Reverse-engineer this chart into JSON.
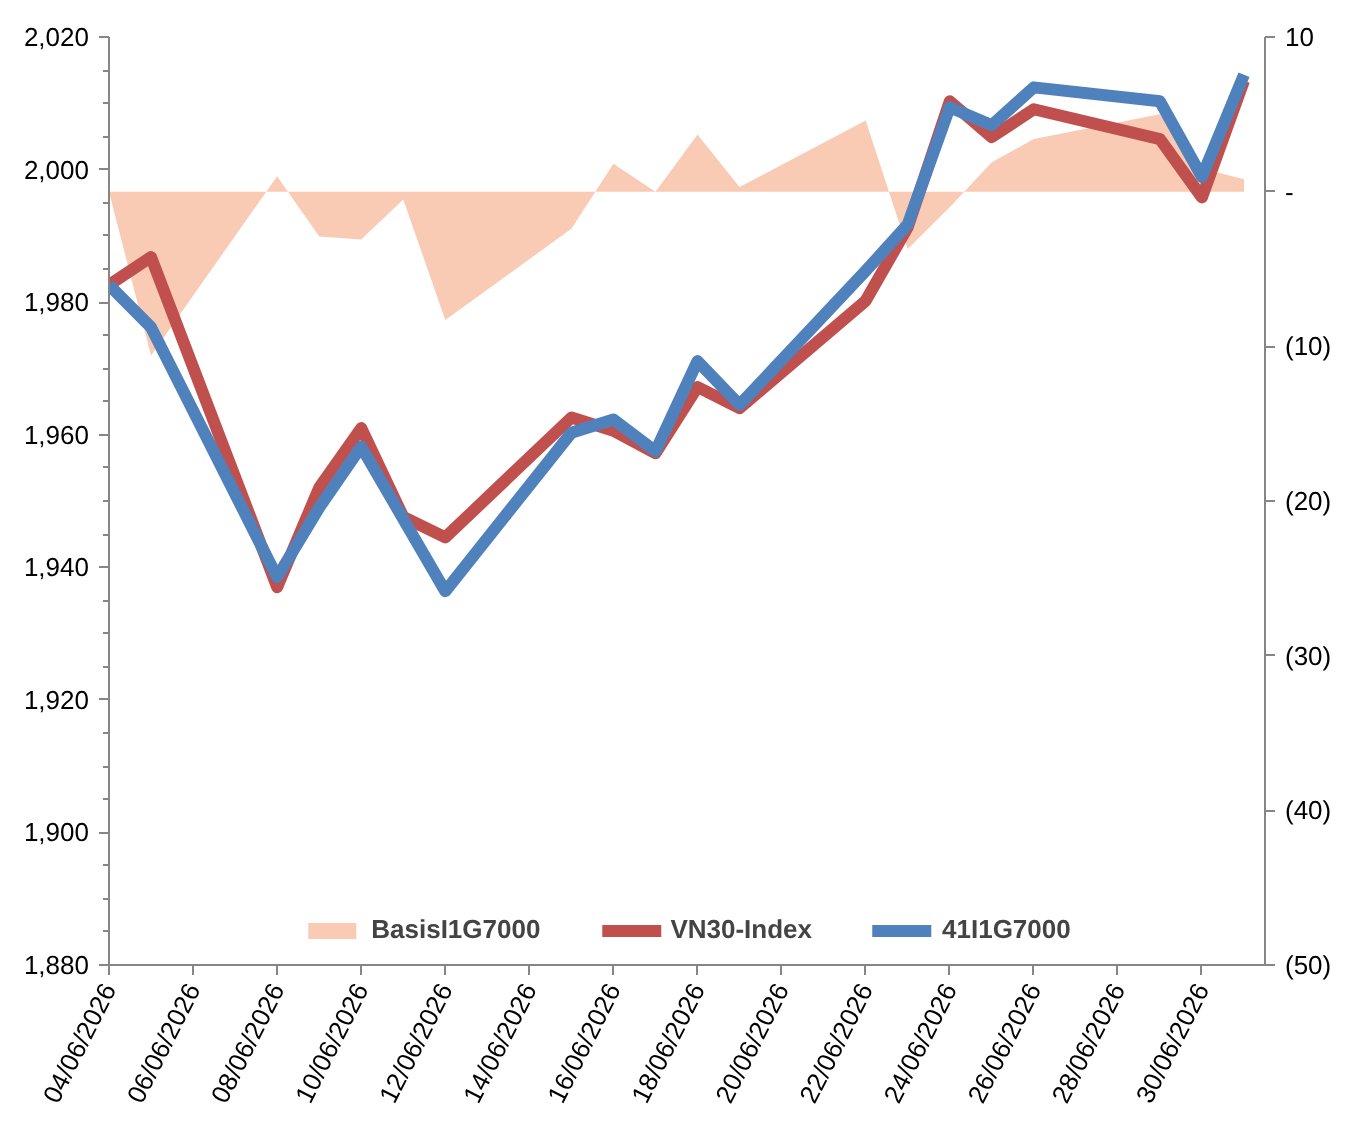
{
  "chart_data": {
    "type": "line",
    "x": [
      "2026-06-04",
      "2026-06-05",
      "2026-06-08",
      "2026-06-09",
      "2026-06-10",
      "2026-06-11",
      "2026-06-12",
      "2026-06-15",
      "2026-06-16",
      "2026-06-17",
      "2026-06-18",
      "2026-06-19",
      "2026-06-22",
      "2026-06-23",
      "2026-06-24",
      "2026-06-25",
      "2026-06-26",
      "2026-06-29",
      "2026-06-30",
      "2026-07-01"
    ],
    "series": [
      {
        "name": "BasisI1G7000",
        "type": "area",
        "axis": "y2",
        "color": "#f9cbb5",
        "values": [
          0,
          -10.6,
          1.0,
          -2.9,
          -3.1,
          -0.5,
          -8.3,
          -2.4,
          1.8,
          0,
          3.7,
          0.3,
          4.6,
          -3.7,
          -1.0,
          1.9,
          3.4,
          5.0,
          1.5,
          0.8
        ]
      },
      {
        "name": "VN30-Index",
        "color": "#c0504d",
        "values": [
          1982.6,
          1986.8,
          1937,
          1952,
          1961,
          1947.6,
          1944.5,
          1962.6,
          1960.6,
          1957.2,
          1967.2,
          1964,
          1980.2,
          1991.3,
          2010.3,
          2004.9,
          2009.1,
          2004.6,
          1995.8,
          2013.4
        ]
      },
      {
        "name": "41I1G7000",
        "color": "#4f81bd",
        "values": [
          1982.6,
          1976.2,
          1938.5,
          1949,
          1958.2,
          1947.3,
          1936.4,
          1960.3,
          1962.3,
          1957.5,
          1971.1,
          1964.5,
          1984.7,
          1991.7,
          2009.4,
          2006.7,
          2012.4,
          2010.3,
          1998.9,
          2014.3
        ]
      }
    ],
    "xlim": [
      "2026-06-04",
      "2026-07-01T12:00"
    ],
    "xticks": [
      {
        "value": "2026-06-04",
        "label": "04/06/2026"
      },
      {
        "value": "2026-06-06",
        "label": "06/06/2026"
      },
      {
        "value": "2026-06-08",
        "label": "08/06/2026"
      },
      {
        "value": "2026-06-10",
        "label": "10/06/2026"
      },
      {
        "value": "2026-06-12",
        "label": "12/06/2026"
      },
      {
        "value": "2026-06-14",
        "label": "14/06/2026"
      },
      {
        "value": "2026-06-16",
        "label": "16/06/2026"
      },
      {
        "value": "2026-06-18",
        "label": "18/06/2026"
      },
      {
        "value": "2026-06-20",
        "label": "20/06/2026"
      },
      {
        "value": "2026-06-22",
        "label": "22/06/2026"
      },
      {
        "value": "2026-06-24",
        "label": "24/06/2026"
      },
      {
        "value": "2026-06-26",
        "label": "26/06/2026"
      },
      {
        "value": "2026-06-28",
        "label": "28/06/2026"
      },
      {
        "value": "2026-06-30",
        "label": "30/06/2026"
      }
    ],
    "ylim": [
      1880,
      2020
    ],
    "yticks": [
      {
        "value": 1880,
        "label": "1,880"
      },
      {
        "value": 1900,
        "label": "1,900"
      },
      {
        "value": 1920,
        "label": "1,920"
      },
      {
        "value": 1940,
        "label": "1,940"
      },
      {
        "value": 1960,
        "label": "1,960"
      },
      {
        "value": 1980,
        "label": "1,980"
      },
      {
        "value": 2000,
        "label": "2,000"
      },
      {
        "value": 2020,
        "label": "2,020"
      }
    ],
    "y2lim": [
      -50,
      10
    ],
    "y2ticks": [
      {
        "value": -50,
        "label": "(50)"
      },
      {
        "value": -40,
        "label": "(40)"
      },
      {
        "value": -30,
        "label": "(30)"
      },
      {
        "value": -20,
        "label": "(20)"
      },
      {
        "value": -10,
        "label": "(10)"
      },
      {
        "value": 0,
        "label": "-"
      },
      10
    ],
    "grid": false,
    "legend": "bottom",
    "line_style": "solid",
    "marker": "none"
  }
}
